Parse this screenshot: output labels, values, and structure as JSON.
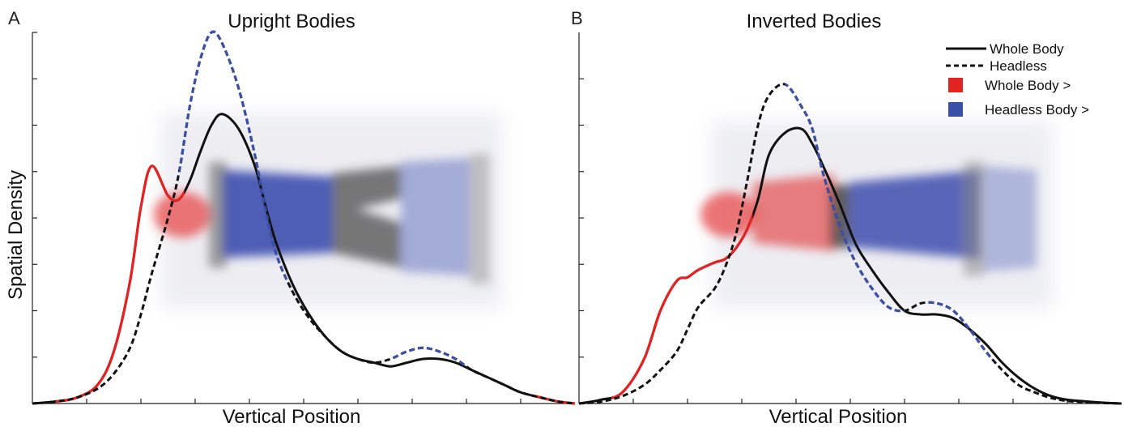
{
  "colors": {
    "whole_body_line": "#111111",
    "headless_line": "#111111",
    "whole_body_greater": "#e32222",
    "headless_body_greater": "#3a4fa8",
    "shared_region": "#555555"
  },
  "legend": {
    "items": [
      {
        "label": "Whole Body",
        "style": "solid"
      },
      {
        "label": "Headless",
        "style": "dashed"
      },
      {
        "label": "Whole Body  >",
        "style": "red-square"
      },
      {
        "label": "Headless Body >",
        "style": "blue-square"
      }
    ]
  },
  "chart_data": [
    {
      "type": "area",
      "panel_letter": "A",
      "title": "Upright Bodies",
      "xlabel": "Vertical Position",
      "ylabel": "Spatial Density",
      "xlim": [
        0,
        1
      ],
      "ylim": [
        0,
        1
      ],
      "ticks_x": [
        0.1,
        0.2,
        0.3,
        0.4,
        0.5,
        0.6,
        0.7,
        0.8,
        0.9
      ],
      "ticks_y": [
        0.125,
        0.25,
        0.375,
        0.5,
        0.625,
        0.75,
        0.875,
        1.0
      ],
      "grid": false,
      "series": [
        {
          "name": "Whole Body",
          "line": "solid",
          "x": [
            0,
            0.04,
            0.08,
            0.12,
            0.15,
            0.18,
            0.2,
            0.22,
            0.25,
            0.27,
            0.29,
            0.31,
            0.33,
            0.35,
            0.38,
            0.41,
            0.43,
            0.45,
            0.48,
            0.51,
            0.54,
            0.57,
            0.6,
            0.63,
            0.66,
            0.69,
            0.72,
            0.75,
            0.78,
            0.81,
            0.84,
            0.87,
            0.9,
            0.94,
            0.97,
            1.0
          ],
          "y": [
            0,
            0.005,
            0.015,
            0.05,
            0.14,
            0.33,
            0.53,
            0.64,
            0.56,
            0.55,
            0.6,
            0.68,
            0.75,
            0.78,
            0.74,
            0.64,
            0.53,
            0.43,
            0.32,
            0.24,
            0.18,
            0.14,
            0.12,
            0.11,
            0.1,
            0.11,
            0.12,
            0.12,
            0.11,
            0.09,
            0.07,
            0.05,
            0.03,
            0.015,
            0.005,
            0
          ],
          "color_segments": [
            {
              "x_range": [
                0.04,
                0.28
              ],
              "color": "whole_body_greater"
            },
            {
              "x_range": [
                0.92,
                1.0
              ],
              "color": "whole_body_greater"
            }
          ]
        },
        {
          "name": "Headless",
          "line": "dashed",
          "x": [
            0,
            0.04,
            0.08,
            0.12,
            0.15,
            0.18,
            0.2,
            0.22,
            0.25,
            0.27,
            0.29,
            0.31,
            0.33,
            0.35,
            0.38,
            0.41,
            0.43,
            0.45,
            0.48,
            0.51,
            0.54,
            0.57,
            0.6,
            0.63,
            0.66,
            0.69,
            0.72,
            0.75,
            0.78,
            0.81,
            0.84,
            0.87,
            0.9,
            0.94,
            0.97,
            1.0
          ],
          "y": [
            0,
            0.005,
            0.015,
            0.04,
            0.08,
            0.15,
            0.24,
            0.35,
            0.5,
            0.62,
            0.8,
            0.93,
            1.0,
            0.97,
            0.85,
            0.67,
            0.52,
            0.4,
            0.3,
            0.23,
            0.18,
            0.14,
            0.12,
            0.11,
            0.12,
            0.14,
            0.15,
            0.14,
            0.12,
            0.09,
            0.07,
            0.05,
            0.03,
            0.015,
            0.005,
            0
          ],
          "color_segments": [
            {
              "x_range": [
                0.27,
                0.47
              ],
              "color": "headless_body_greater"
            },
            {
              "x_range": [
                0.66,
                0.8
              ],
              "color": "headless_body_greater"
            }
          ]
        }
      ]
    },
    {
      "type": "area",
      "panel_letter": "B",
      "title": "Inverted Bodies",
      "xlabel": "Vertical Position",
      "ylabel": "",
      "xlim": [
        0,
        1
      ],
      "ylim": [
        0,
        1
      ],
      "ticks_x": [
        0.1,
        0.2,
        0.3,
        0.4,
        0.5,
        0.6,
        0.7,
        0.8,
        0.9
      ],
      "ticks_y": [
        0.125,
        0.25,
        0.375,
        0.5,
        0.625,
        0.75,
        0.875
      ],
      "grid": false,
      "series": [
        {
          "name": "Whole Body",
          "line": "solid",
          "x": [
            0,
            0.04,
            0.08,
            0.12,
            0.15,
            0.18,
            0.2,
            0.22,
            0.25,
            0.27,
            0.29,
            0.31,
            0.33,
            0.35,
            0.38,
            0.41,
            0.43,
            0.45,
            0.48,
            0.51,
            0.54,
            0.57,
            0.6,
            0.63,
            0.66,
            0.69,
            0.72,
            0.75,
            0.78,
            0.81,
            0.84,
            0.87,
            0.9,
            0.94,
            0.97,
            1.0
          ],
          "y": [
            0,
            0.01,
            0.03,
            0.12,
            0.25,
            0.33,
            0.34,
            0.36,
            0.38,
            0.39,
            0.42,
            0.47,
            0.55,
            0.67,
            0.73,
            0.74,
            0.7,
            0.64,
            0.54,
            0.43,
            0.36,
            0.3,
            0.25,
            0.24,
            0.24,
            0.23,
            0.2,
            0.16,
            0.11,
            0.07,
            0.04,
            0.02,
            0.01,
            0.005,
            0.002,
            0
          ],
          "color_segments": [
            {
              "x_range": [
                0.06,
                0.32
              ],
              "color": "whole_body_greater"
            }
          ]
        },
        {
          "name": "Headless",
          "line": "dashed",
          "x": [
            0,
            0.04,
            0.08,
            0.12,
            0.15,
            0.18,
            0.2,
            0.22,
            0.25,
            0.27,
            0.29,
            0.31,
            0.33,
            0.35,
            0.38,
            0.41,
            0.43,
            0.45,
            0.48,
            0.51,
            0.54,
            0.57,
            0.6,
            0.63,
            0.66,
            0.69,
            0.72,
            0.75,
            0.78,
            0.81,
            0.84,
            0.87,
            0.9,
            0.94,
            0.97,
            1.0
          ],
          "y": [
            0,
            0.005,
            0.02,
            0.05,
            0.09,
            0.14,
            0.2,
            0.26,
            0.31,
            0.37,
            0.46,
            0.6,
            0.75,
            0.83,
            0.86,
            0.8,
            0.74,
            0.62,
            0.48,
            0.38,
            0.31,
            0.26,
            0.25,
            0.27,
            0.27,
            0.25,
            0.2,
            0.14,
            0.09,
            0.05,
            0.03,
            0.015,
            0.007,
            0.003,
            0.001,
            0
          ],
          "color_segments": [
            {
              "x_range": [
                0.38,
                0.6
              ],
              "color": "headless_body_greater"
            },
            {
              "x_range": [
                0.64,
                0.76
              ],
              "color": "headless_body_greater"
            }
          ]
        }
      ]
    }
  ]
}
